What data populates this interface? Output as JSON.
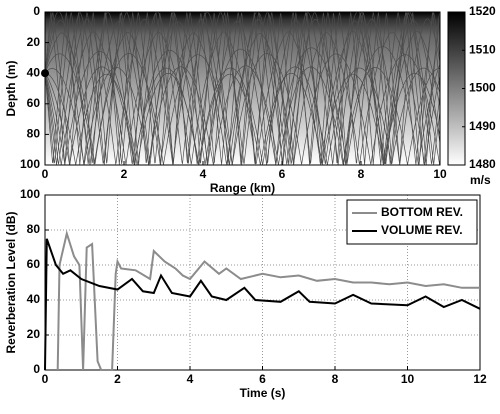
{
  "chart_data": [
    {
      "type": "raytrace",
      "xlabel": "Range (km)",
      "ylabel": "Depth (m)",
      "xlim": [
        0,
        10
      ],
      "xticks": [
        0,
        2,
        4,
        6,
        8,
        10
      ],
      "ylim": [
        100,
        0
      ],
      "yticks": [
        0,
        20,
        40,
        60,
        80,
        100
      ],
      "grid": false,
      "sound_speed": {
        "depth": [
          0,
          5,
          15,
          40,
          60,
          80,
          100
        ],
        "values": [
          1520,
          1512,
          1504,
          1497,
          1491,
          1486,
          1480
        ]
      },
      "colorbar": {
        "lim": [
          1480,
          1520
        ],
        "ticks": [
          1480,
          1490,
          1500,
          1510,
          1520
        ],
        "label": "m/s",
        "colors": [
          "#ffffff",
          "#000000"
        ]
      },
      "source": {
        "range": 0,
        "depth": 40,
        "color": "#000000"
      },
      "ray_color": "#4d4d4d",
      "ray_angles": [
        -16,
        -13,
        -10,
        -8,
        -6,
        -4,
        -2,
        0,
        2,
        4,
        6,
        8,
        10,
        13,
        16
      ]
    },
    {
      "type": "line",
      "xlabel": "Time (s)",
      "ylabel": "Reverberation Level (dB)",
      "xlim": [
        0,
        12
      ],
      "xticks": [
        0,
        2,
        4,
        6,
        8,
        10,
        12
      ],
      "ylim": [
        0,
        100
      ],
      "yticks": [
        0,
        20,
        40,
        60,
        80,
        100
      ],
      "grid": true,
      "legend": "upper right",
      "series": [
        {
          "name": "BOTTOM REV.",
          "color": "#8c8c8c",
          "x": [
            0.35,
            0.4,
            0.6,
            0.8,
            0.95,
            1.05,
            1.15,
            1.3,
            1.45,
            1.55,
            1.85,
            1.95,
            2.0,
            2.1,
            2.5,
            2.9,
            3.0,
            3.3,
            3.6,
            3.8,
            4.0,
            4.4,
            4.8,
            5.0,
            5.4,
            6.0,
            6.5,
            7.0,
            7.5,
            8.0,
            8.5,
            9.0,
            9.5,
            10.0,
            10.5,
            11.0,
            11.5,
            12.0
          ],
          "values": [
            0,
            60,
            78,
            65,
            60,
            0,
            70,
            72,
            5,
            0,
            0,
            55,
            62,
            58,
            57,
            52,
            68,
            62,
            58,
            54,
            52,
            62,
            55,
            58,
            52,
            55,
            53,
            54,
            51,
            52,
            50,
            50,
            49,
            50,
            48,
            49,
            47,
            47
          ]
        },
        {
          "name": "VOLUME REV.",
          "color": "#000000",
          "x": [
            0,
            0.05,
            0.3,
            0.5,
            0.7,
            1.0,
            1.5,
            2.0,
            2.4,
            2.7,
            3.0,
            3.2,
            3.5,
            4.0,
            4.3,
            4.6,
            5.0,
            5.5,
            5.8,
            6.5,
            7.0,
            7.3,
            8.0,
            8.5,
            9.0,
            10.0,
            10.5,
            11.0,
            11.5,
            12.0
          ],
          "values": [
            0,
            75,
            60,
            55,
            57,
            52,
            48,
            46,
            52,
            45,
            44,
            54,
            44,
            42,
            51,
            42,
            40,
            47,
            40,
            39,
            45,
            39,
            38,
            43,
            38,
            37,
            42,
            36,
            40,
            35
          ]
        }
      ]
    }
  ]
}
